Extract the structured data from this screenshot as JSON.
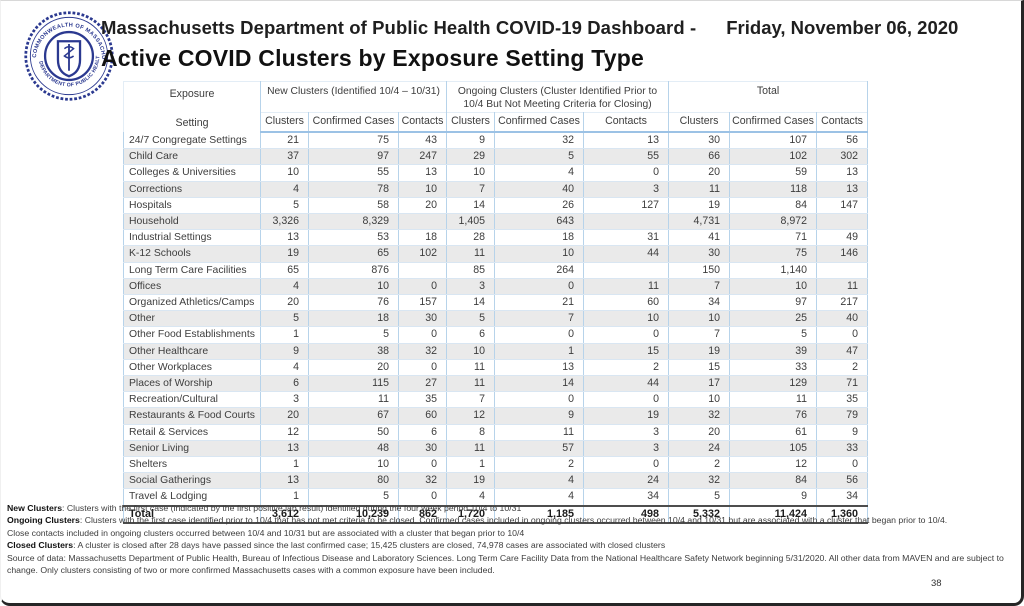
{
  "header": {
    "title_prefix": "Massachusetts Department of Public Health COVID-19 Dashboard -",
    "date": "Friday, November 06, 2020",
    "subtitle": "Active COVID Clusters by Exposure Setting Type"
  },
  "logo": {
    "ring_text_top": "COMMONWEALTH OF MASSACHUSETTS",
    "ring_text_bottom": "DEPARTMENT OF PUBLIC HEALTH"
  },
  "table": {
    "row_header": {
      "line1": "Exposure",
      "line2": "Setting"
    },
    "groups": [
      {
        "label": "New Clusters (Identified 10/4 – 10/31)"
      },
      {
        "label": "Ongoing Clusters (Cluster Identified Prior to 10/4 But Not Meeting Criteria for Closing)"
      },
      {
        "label": "Total"
      }
    ],
    "subheaders": [
      "Clusters",
      "Confirmed Cases",
      "Contacts"
    ],
    "rows": [
      {
        "setting": "24/7 Congregate Settings",
        "values": [
          "21",
          "75",
          "43",
          "9",
          "32",
          "13",
          "30",
          "107",
          "56"
        ]
      },
      {
        "setting": "Child Care",
        "values": [
          "37",
          "97",
          "247",
          "29",
          "5",
          "55",
          "66",
          "102",
          "302"
        ]
      },
      {
        "setting": "Colleges & Universities",
        "values": [
          "10",
          "55",
          "13",
          "10",
          "4",
          "0",
          "20",
          "59",
          "13"
        ]
      },
      {
        "setting": "Corrections",
        "values": [
          "4",
          "78",
          "10",
          "7",
          "40",
          "3",
          "11",
          "118",
          "13"
        ]
      },
      {
        "setting": "Hospitals",
        "values": [
          "5",
          "58",
          "20",
          "14",
          "26",
          "127",
          "19",
          "84",
          "147"
        ]
      },
      {
        "setting": "Household",
        "values": [
          "3,326",
          "8,329",
          "",
          "1,405",
          "643",
          "",
          "4,731",
          "8,972",
          ""
        ]
      },
      {
        "setting": "Industrial Settings",
        "values": [
          "13",
          "53",
          "18",
          "28",
          "18",
          "31",
          "41",
          "71",
          "49"
        ]
      },
      {
        "setting": "K-12 Schools",
        "values": [
          "19",
          "65",
          "102",
          "11",
          "10",
          "44",
          "30",
          "75",
          "146"
        ]
      },
      {
        "setting": "Long Term Care Facilities",
        "values": [
          "65",
          "876",
          "",
          "85",
          "264",
          "",
          "150",
          "1,140",
          ""
        ]
      },
      {
        "setting": "Offices",
        "values": [
          "4",
          "10",
          "0",
          "3",
          "0",
          "11",
          "7",
          "10",
          "11"
        ]
      },
      {
        "setting": "Organized Athletics/Camps",
        "values": [
          "20",
          "76",
          "157",
          "14",
          "21",
          "60",
          "34",
          "97",
          "217"
        ]
      },
      {
        "setting": "Other",
        "values": [
          "5",
          "18",
          "30",
          "5",
          "7",
          "10",
          "10",
          "25",
          "40"
        ]
      },
      {
        "setting": "Other Food Establishments",
        "values": [
          "1",
          "5",
          "0",
          "6",
          "0",
          "0",
          "7",
          "5",
          "0"
        ]
      },
      {
        "setting": "Other Healthcare",
        "values": [
          "9",
          "38",
          "32",
          "10",
          "1",
          "15",
          "19",
          "39",
          "47"
        ]
      },
      {
        "setting": "Other Workplaces",
        "values": [
          "4",
          "20",
          "0",
          "11",
          "13",
          "2",
          "15",
          "33",
          "2"
        ]
      },
      {
        "setting": "Places of Worship",
        "values": [
          "6",
          "115",
          "27",
          "11",
          "14",
          "44",
          "17",
          "129",
          "71"
        ]
      },
      {
        "setting": "Recreation/Cultural",
        "values": [
          "3",
          "11",
          "35",
          "7",
          "0",
          "0",
          "10",
          "11",
          "35"
        ]
      },
      {
        "setting": "Restaurants & Food Courts",
        "values": [
          "20",
          "67",
          "60",
          "12",
          "9",
          "19",
          "32",
          "76",
          "79"
        ]
      },
      {
        "setting": "Retail & Services",
        "values": [
          "12",
          "50",
          "6",
          "8",
          "11",
          "3",
          "20",
          "61",
          "9"
        ]
      },
      {
        "setting": "Senior Living",
        "values": [
          "13",
          "48",
          "30",
          "11",
          "57",
          "3",
          "24",
          "105",
          "33"
        ]
      },
      {
        "setting": "Shelters",
        "values": [
          "1",
          "10",
          "0",
          "1",
          "2",
          "0",
          "2",
          "12",
          "0"
        ]
      },
      {
        "setting": "Social Gatherings",
        "values": [
          "13",
          "80",
          "32",
          "19",
          "4",
          "24",
          "32",
          "84",
          "56"
        ]
      },
      {
        "setting": "Travel & Lodging",
        "values": [
          "1",
          "5",
          "0",
          "4",
          "4",
          "34",
          "5",
          "9",
          "34"
        ]
      }
    ],
    "total": {
      "setting": "Total",
      "values": [
        "3,612",
        "10,239",
        "862",
        "1,720",
        "1,185",
        "498",
        "5,332",
        "11,424",
        "1,360"
      ]
    }
  },
  "footnotes": [
    {
      "bold": "New Clusters",
      "text": ": Clusters with the first case (indicated by the first positive lab result) identified during the four week period 10/4 to 10/31"
    },
    {
      "bold": "Ongoing Clusters",
      "text": ": Clusters with the first case identified prior to 10/4 that has not met criteria to be closed. Confirmed cases included in ongoing clusters occurred between 10/4 and 10/31 but are associated with a cluster that began prior to 10/4."
    },
    {
      "bold": "",
      "text": "Close contacts included in ongoing clusters occurred between 10/4 and 10/31 but are associated with a cluster that began prior to 10/4"
    },
    {
      "bold": "Closed Clusters",
      "text": ": A cluster is closed after 28 days have passed since the last confirmed case; 15,425 clusters are closed, 74,978 cases are associated with closed clusters"
    },
    {
      "bold": "",
      "text": "Source of data: Massachusetts Department of Public Health, Bureau of Infectious Disease and Laboratory Sciences. Long Term Care Facility Data from the National Healthcare Safety Network beginning 5/31/2020. All other data from MAVEN and are subject to change. Only clusters consisting of two or more confirmed Massachusetts cases with a common exposure have been included."
    }
  ],
  "page": {
    "page_number": "38"
  },
  "colors": {
    "table_border_blue": "#b7d3ea",
    "header_underline_blue": "#9cc2e5",
    "stripe_gray": "#eaeaea",
    "seal_blue": "#2b3990",
    "total_rule_dark": "#4d4d4d"
  }
}
